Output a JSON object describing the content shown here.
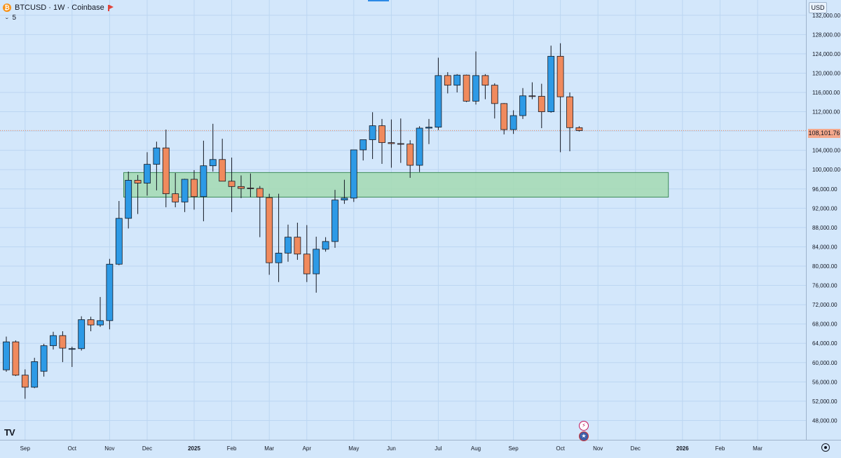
{
  "header": {
    "symbol_title": "BTCUSD · 1W · Coinbase",
    "indicator_count": "5",
    "currency": "USD"
  },
  "colors": {
    "up": "#2d9ae6",
    "down": "#f08a5d",
    "zone_fill": "#a3d9b1",
    "zone_stroke": "#3f8a5a",
    "grid": "#bcd6f2",
    "price_line": "#f08a5d"
  },
  "chart_data": {
    "type": "candlestick",
    "title": "BTCUSD · 1W · Coinbase",
    "y_axis": {
      "min": 44000,
      "max": 134000,
      "ticks": [
        48000,
        52000,
        56000,
        60000,
        64000,
        68000,
        72000,
        76000,
        80000,
        84000,
        88000,
        92000,
        96000,
        100000,
        104000,
        108000,
        112000,
        116000,
        120000,
        124000,
        128000,
        132000
      ]
    },
    "x_axis": {
      "labels": [
        "Sep",
        "Oct",
        "Nov",
        "Dec",
        "2025",
        "Feb",
        "Mar",
        "Apr",
        "May",
        "Jun",
        "Jul",
        "Aug",
        "Sep",
        "Oct",
        "Nov",
        "Dec",
        "2026",
        "Feb",
        "Mar"
      ],
      "label_candle_index": [
        2,
        7,
        11,
        15,
        20,
        24,
        28,
        32,
        37,
        41,
        46,
        50,
        54,
        59,
        63,
        67,
        72,
        76,
        80
      ]
    },
    "last_price": 108101.76,
    "last_price_label": "108,101.76",
    "zone": {
      "low": 94300,
      "high": 99400,
      "from_candle": 12.5,
      "to_candle": 70.5
    },
    "candles": [
      {
        "o": 58500,
        "h": 65400,
        "l": 58100,
        "c": 64300
      },
      {
        "o": 64300,
        "h": 64600,
        "l": 57200,
        "c": 57400
      },
      {
        "o": 57400,
        "h": 58600,
        "l": 52500,
        "c": 54900
      },
      {
        "o": 54900,
        "h": 61000,
        "l": 54700,
        "c": 60200
      },
      {
        "o": 58200,
        "h": 63900,
        "l": 57100,
        "c": 63500
      },
      {
        "o": 63500,
        "h": 66400,
        "l": 62700,
        "c": 65600
      },
      {
        "o": 65600,
        "h": 66500,
        "l": 60100,
        "c": 63000
      },
      {
        "o": 62900,
        "h": 63300,
        "l": 59100,
        "c": 62900
      },
      {
        "o": 62900,
        "h": 69600,
        "l": 62500,
        "c": 68900
      },
      {
        "o": 68900,
        "h": 69500,
        "l": 66500,
        "c": 67800
      },
      {
        "o": 67800,
        "h": 73600,
        "l": 67400,
        "c": 68700
      },
      {
        "o": 68700,
        "h": 81500,
        "l": 66900,
        "c": 80400
      },
      {
        "o": 80400,
        "h": 93500,
        "l": 80200,
        "c": 89900
      },
      {
        "o": 89900,
        "h": 99600,
        "l": 87800,
        "c": 97800
      },
      {
        "o": 97800,
        "h": 98900,
        "l": 90800,
        "c": 97200
      },
      {
        "o": 97200,
        "h": 103600,
        "l": 94600,
        "c": 101100
      },
      {
        "o": 101100,
        "h": 105800,
        "l": 95700,
        "c": 104500
      },
      {
        "o": 104500,
        "h": 108300,
        "l": 92200,
        "c": 95000
      },
      {
        "o": 95000,
        "h": 99300,
        "l": 92200,
        "c": 93300
      },
      {
        "o": 93300,
        "h": 98100,
        "l": 91200,
        "c": 98000
      },
      {
        "o": 98000,
        "h": 99900,
        "l": 91700,
        "c": 94400
      },
      {
        "o": 94400,
        "h": 106000,
        "l": 89300,
        "c": 100800
      },
      {
        "o": 100800,
        "h": 109500,
        "l": 99600,
        "c": 102100
      },
      {
        "o": 102100,
        "h": 106400,
        "l": 97800,
        "c": 97600
      },
      {
        "o": 97600,
        "h": 102500,
        "l": 91200,
        "c": 96500
      },
      {
        "o": 96500,
        "h": 98800,
        "l": 94100,
        "c": 96100
      },
      {
        "o": 96200,
        "h": 99200,
        "l": 94300,
        "c": 96100
      },
      {
        "o": 96100,
        "h": 96600,
        "l": 86000,
        "c": 94300
      },
      {
        "o": 94200,
        "h": 95000,
        "l": 78200,
        "c": 80700
      },
      {
        "o": 80700,
        "h": 95000,
        "l": 76700,
        "c": 82700
      },
      {
        "o": 82700,
        "h": 88600,
        "l": 80900,
        "c": 86000
      },
      {
        "o": 86000,
        "h": 89000,
        "l": 81300,
        "c": 82500
      },
      {
        "o": 82500,
        "h": 88500,
        "l": 76700,
        "c": 78400
      },
      {
        "o": 78400,
        "h": 86100,
        "l": 74500,
        "c": 83500
      },
      {
        "o": 83500,
        "h": 86000,
        "l": 83000,
        "c": 85100
      },
      {
        "o": 85100,
        "h": 95800,
        "l": 83800,
        "c": 93700
      },
      {
        "o": 93700,
        "h": 97900,
        "l": 92900,
        "c": 94100
      },
      {
        "o": 94100,
        "h": 104000,
        "l": 93300,
        "c": 104100
      },
      {
        "o": 104100,
        "h": 105800,
        "l": 101900,
        "c": 106200
      },
      {
        "o": 106200,
        "h": 111900,
        "l": 102200,
        "c": 109100
      },
      {
        "o": 109100,
        "h": 110500,
        "l": 101200,
        "c": 105600
      },
      {
        "o": 105600,
        "h": 110400,
        "l": 100400,
        "c": 105400
      },
      {
        "o": 105400,
        "h": 110600,
        "l": 101400,
        "c": 105300
      },
      {
        "o": 105300,
        "h": 106100,
        "l": 98300,
        "c": 100900
      },
      {
        "o": 100900,
        "h": 109000,
        "l": 99500,
        "c": 108600
      },
      {
        "o": 108600,
        "h": 110500,
        "l": 105300,
        "c": 108800
      },
      {
        "o": 108800,
        "h": 123200,
        "l": 108200,
        "c": 119500
      },
      {
        "o": 119500,
        "h": 120200,
        "l": 115800,
        "c": 117500
      },
      {
        "o": 117500,
        "h": 119800,
        "l": 116000,
        "c": 119600
      },
      {
        "o": 119600,
        "h": 119700,
        "l": 114000,
        "c": 114200
      },
      {
        "o": 114200,
        "h": 124500,
        "l": 113500,
        "c": 119500
      },
      {
        "o": 119500,
        "h": 119800,
        "l": 114600,
        "c": 117500
      },
      {
        "o": 117500,
        "h": 117900,
        "l": 110600,
        "c": 113700
      },
      {
        "o": 113700,
        "h": 113800,
        "l": 107300,
        "c": 108300
      },
      {
        "o": 108300,
        "h": 112300,
        "l": 107400,
        "c": 111200
      },
      {
        "o": 111200,
        "h": 116900,
        "l": 110500,
        "c": 115300
      },
      {
        "o": 115300,
        "h": 118100,
        "l": 114600,
        "c": 115200
      },
      {
        "o": 115200,
        "h": 117800,
        "l": 108600,
        "c": 112000
      },
      {
        "o": 112000,
        "h": 125700,
        "l": 111800,
        "c": 123500
      },
      {
        "o": 123500,
        "h": 126200,
        "l": 103600,
        "c": 115100
      },
      {
        "o": 115100,
        "h": 116000,
        "l": 103800,
        "c": 108700
      },
      {
        "o": 108700,
        "h": 109000,
        "l": 107900,
        "c": 108100
      }
    ]
  }
}
